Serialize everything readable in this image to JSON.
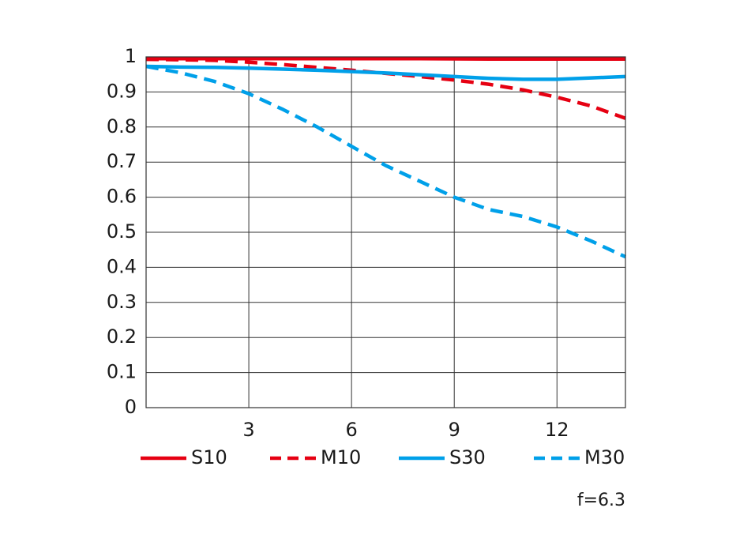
{
  "chart_data": {
    "type": "line",
    "xlim": [
      0,
      14
    ],
    "ylim": [
      0,
      1
    ],
    "x_ticks": [
      3,
      6,
      9,
      12
    ],
    "y_ticks": [
      0,
      0.1,
      0.2,
      0.3,
      0.4,
      0.5,
      0.6,
      0.7,
      0.8,
      0.9,
      1
    ],
    "y_tick_labels": [
      "0",
      "0.1",
      "0.2",
      "0.3",
      "0.4",
      "0.5",
      "0.6",
      "0.7",
      "0.8",
      "0.9",
      "1"
    ],
    "grid": true,
    "legend_position": "bottom",
    "note": "f=6.3",
    "series": [
      {
        "name": "S10",
        "color": "#e60012",
        "style": "solid",
        "x": [
          0,
          2,
          4,
          6,
          8,
          10,
          12,
          14
        ],
        "y": [
          0.995,
          0.995,
          0.995,
          0.995,
          0.995,
          0.994,
          0.994,
          0.994
        ]
      },
      {
        "name": "M10",
        "color": "#e60012",
        "style": "dashed",
        "x": [
          0,
          1,
          2,
          3,
          4,
          5,
          6,
          7,
          8,
          9,
          10,
          11,
          12,
          13,
          14
        ],
        "y": [
          0.993,
          0.992,
          0.99,
          0.985,
          0.978,
          0.97,
          0.962,
          0.953,
          0.944,
          0.934,
          0.922,
          0.906,
          0.885,
          0.86,
          0.825
        ]
      },
      {
        "name": "S30",
        "color": "#00a0e9",
        "style": "solid",
        "x": [
          0,
          1,
          2,
          3,
          4,
          5,
          6,
          7,
          8,
          9,
          10,
          11,
          12,
          13,
          14
        ],
        "y": [
          0.973,
          0.971,
          0.97,
          0.968,
          0.965,
          0.962,
          0.958,
          0.954,
          0.949,
          0.944,
          0.939,
          0.936,
          0.936,
          0.94,
          0.944
        ]
      },
      {
        "name": "M30",
        "color": "#00a0e9",
        "style": "dashed",
        "x": [
          0,
          1,
          2,
          3,
          4,
          5,
          6,
          7,
          8,
          9,
          10,
          11,
          12,
          13,
          14
        ],
        "y": [
          0.973,
          0.955,
          0.93,
          0.895,
          0.85,
          0.8,
          0.745,
          0.69,
          0.645,
          0.6,
          0.565,
          0.545,
          0.515,
          0.475,
          0.43
        ]
      }
    ]
  }
}
